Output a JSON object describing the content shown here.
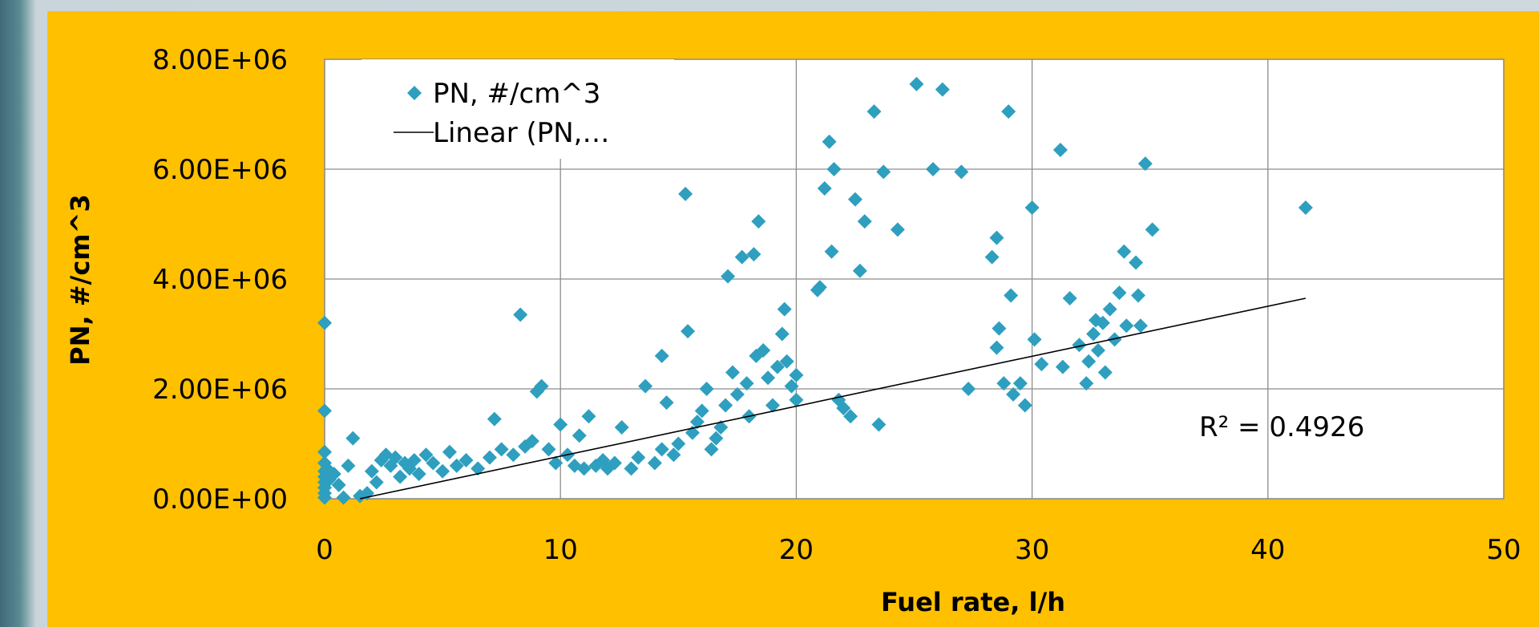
{
  "chart_data": {
    "type": "scatter",
    "xlabel": "Fuel rate, l/h",
    "ylabel": "PN, #/cm^3",
    "xlim": [
      0,
      50
    ],
    "ylim": [
      0,
      8000000
    ],
    "x_ticks": [
      "0",
      "10",
      "20",
      "30",
      "40",
      "50"
    ],
    "y_ticks": [
      "0.00E+00",
      "2.00E+06",
      "4.00E+06",
      "6.00E+06",
      "8.00E+06"
    ],
    "grid": true,
    "legend_position": "top-left",
    "legend": [
      "PN, #/cm^3",
      "Linear (PN,…"
    ],
    "trendline": {
      "type": "linear",
      "x": [
        1.5,
        41.6
      ],
      "y": [
        0,
        3650000
      ],
      "r2_label": "R² = 0.4926",
      "color": "#000000"
    },
    "marker_color": "#2e9fbf",
    "background_color": "#ffc000",
    "series": [
      {
        "name": "PN, #/cm^3",
        "points": [
          [
            0.0,
            3200000
          ],
          [
            0.0,
            1600000
          ],
          [
            0.0,
            850000
          ],
          [
            0.0,
            650000
          ],
          [
            0.0,
            500000
          ],
          [
            0.0,
            400000
          ],
          [
            0.0,
            300000
          ],
          [
            0.0,
            200000
          ],
          [
            0.0,
            100000
          ],
          [
            0.0,
            20000
          ],
          [
            0.1,
            550000
          ],
          [
            0.2,
            350000
          ],
          [
            0.4,
            450000
          ],
          [
            0.6,
            250000
          ],
          [
            0.8,
            20000
          ],
          [
            1.0,
            600000
          ],
          [
            1.2,
            1100000
          ],
          [
            1.5,
            50000
          ],
          [
            1.8,
            100000
          ],
          [
            2.0,
            500000
          ],
          [
            2.2,
            300000
          ],
          [
            2.4,
            700000
          ],
          [
            2.6,
            800000
          ],
          [
            2.8,
            600000
          ],
          [
            3.0,
            750000
          ],
          [
            3.2,
            400000
          ],
          [
            3.4,
            650000
          ],
          [
            3.6,
            550000
          ],
          [
            3.8,
            700000
          ],
          [
            4.0,
            450000
          ],
          [
            4.3,
            800000
          ],
          [
            4.6,
            650000
          ],
          [
            5.0,
            500000
          ],
          [
            5.3,
            850000
          ],
          [
            5.6,
            600000
          ],
          [
            6.0,
            700000
          ],
          [
            6.5,
            550000
          ],
          [
            7.0,
            750000
          ],
          [
            7.2,
            1450000
          ],
          [
            7.5,
            900000
          ],
          [
            8.0,
            800000
          ],
          [
            8.3,
            3350000
          ],
          [
            8.5,
            950000
          ],
          [
            8.8,
            1050000
          ],
          [
            9.0,
            1950000
          ],
          [
            9.2,
            2050000
          ],
          [
            9.5,
            900000
          ],
          [
            9.8,
            650000
          ],
          [
            10.0,
            1350000
          ],
          [
            10.3,
            800000
          ],
          [
            10.6,
            600000
          ],
          [
            10.8,
            1150000
          ],
          [
            11.0,
            550000
          ],
          [
            11.2,
            1500000
          ],
          [
            11.5,
            600000
          ],
          [
            11.8,
            700000
          ],
          [
            12.0,
            550000
          ],
          [
            12.3,
            650000
          ],
          [
            12.6,
            1300000
          ],
          [
            13.0,
            550000
          ],
          [
            13.3,
            750000
          ],
          [
            13.6,
            2050000
          ],
          [
            14.0,
            650000
          ],
          [
            14.3,
            900000
          ],
          [
            14.3,
            2600000
          ],
          [
            14.5,
            1750000
          ],
          [
            14.8,
            800000
          ],
          [
            15.0,
            1000000
          ],
          [
            15.3,
            5550000
          ],
          [
            15.4,
            3050000
          ],
          [
            15.6,
            1200000
          ],
          [
            15.8,
            1400000
          ],
          [
            16.0,
            1600000
          ],
          [
            16.2,
            2000000
          ],
          [
            16.4,
            900000
          ],
          [
            16.6,
            1100000
          ],
          [
            16.8,
            1300000
          ],
          [
            17.0,
            1700000
          ],
          [
            17.1,
            4050000
          ],
          [
            17.3,
            2300000
          ],
          [
            17.5,
            1900000
          ],
          [
            17.7,
            4400000
          ],
          [
            17.9,
            2100000
          ],
          [
            18.0,
            1500000
          ],
          [
            18.2,
            4450000
          ],
          [
            18.3,
            2600000
          ],
          [
            18.4,
            5050000
          ],
          [
            18.6,
            2700000
          ],
          [
            18.8,
            2200000
          ],
          [
            19.0,
            1700000
          ],
          [
            19.2,
            2400000
          ],
          [
            19.4,
            3000000
          ],
          [
            19.5,
            3450000
          ],
          [
            19.6,
            2500000
          ],
          [
            19.8,
            2050000
          ],
          [
            20.0,
            2250000
          ],
          [
            20.0,
            1800000
          ],
          [
            20.9,
            3800000
          ],
          [
            21.0,
            3850000
          ],
          [
            21.2,
            5650000
          ],
          [
            21.4,
            6500000
          ],
          [
            21.5,
            4500000
          ],
          [
            21.6,
            6000000
          ],
          [
            21.8,
            1800000
          ],
          [
            22.0,
            1650000
          ],
          [
            22.3,
            1500000
          ],
          [
            22.5,
            5450000
          ],
          [
            22.7,
            4150000
          ],
          [
            22.9,
            5050000
          ],
          [
            23.3,
            7050000
          ],
          [
            23.5,
            1350000
          ],
          [
            23.7,
            5950000
          ],
          [
            24.3,
            4900000
          ],
          [
            25.1,
            7550000
          ],
          [
            25.8,
            6000000
          ],
          [
            26.2,
            7450000
          ],
          [
            27.0,
            5950000
          ],
          [
            27.3,
            2000000
          ],
          [
            28.3,
            4400000
          ],
          [
            28.5,
            4750000
          ],
          [
            28.5,
            2750000
          ],
          [
            28.6,
            3100000
          ],
          [
            28.8,
            2100000
          ],
          [
            29.0,
            7050000
          ],
          [
            29.1,
            3700000
          ],
          [
            29.2,
            1900000
          ],
          [
            29.5,
            2100000
          ],
          [
            29.7,
            1700000
          ],
          [
            30.0,
            5300000
          ],
          [
            30.1,
            2900000
          ],
          [
            30.4,
            2450000
          ],
          [
            31.2,
            6350000
          ],
          [
            31.3,
            2400000
          ],
          [
            31.6,
            3650000
          ],
          [
            32.0,
            2800000
          ],
          [
            32.3,
            2100000
          ],
          [
            32.4,
            2500000
          ],
          [
            32.6,
            3000000
          ],
          [
            32.7,
            3250000
          ],
          [
            32.8,
            2700000
          ],
          [
            33.0,
            3200000
          ],
          [
            33.1,
            2300000
          ],
          [
            33.3,
            3450000
          ],
          [
            33.5,
            2900000
          ],
          [
            33.7,
            3750000
          ],
          [
            33.9,
            4500000
          ],
          [
            34.0,
            3150000
          ],
          [
            34.4,
            4300000
          ],
          [
            34.5,
            3700000
          ],
          [
            34.6,
            3150000
          ],
          [
            34.8,
            6100000
          ],
          [
            35.1,
            4900000
          ],
          [
            41.6,
            5300000
          ]
        ]
      }
    ]
  }
}
